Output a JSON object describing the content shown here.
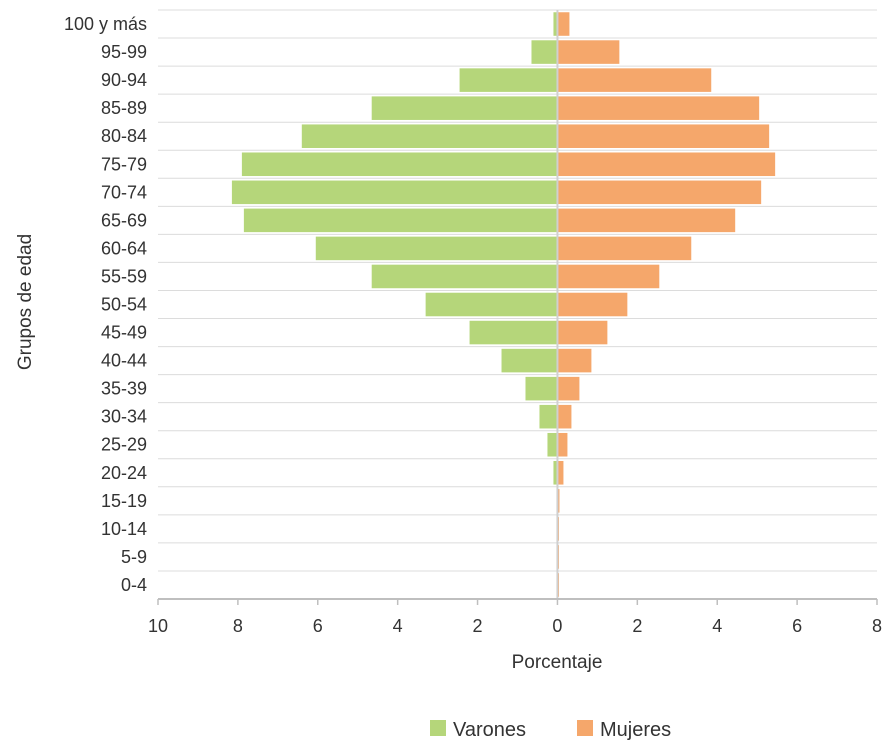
{
  "chart_data": {
    "type": "bar",
    "orientation": "horizontal",
    "variant": "population-pyramid",
    "title": "",
    "xlabel": "Porcentaje",
    "ylabel": "Grupos de edad",
    "xlim": [
      -10,
      8
    ],
    "x_ticks": [
      -10,
      -8,
      -6,
      -4,
      -2,
      0,
      2,
      4,
      6,
      8
    ],
    "x_tick_labels": [
      "10",
      "8",
      "6",
      "4",
      "2",
      "0",
      "2",
      "4",
      "6",
      "8"
    ],
    "grid": true,
    "legend_position": "bottom",
    "categories": [
      "100 y más",
      "95-99",
      "90-94",
      "85-89",
      "80-84",
      "75-79",
      "70-74",
      "65-69",
      "60-64",
      "55-59",
      "50-54",
      "45-49",
      "40-44",
      "35-39",
      "30-34",
      "25-29",
      "20-24",
      "15-19",
      "10-14",
      "5-9",
      "0-4"
    ],
    "series": [
      {
        "name": "Varones",
        "color": "#b5d67a",
        "side": "left",
        "values": [
          0.1,
          0.65,
          2.45,
          4.65,
          6.4,
          7.9,
          8.15,
          7.85,
          6.05,
          4.65,
          3.3,
          2.2,
          1.4,
          0.8,
          0.45,
          0.25,
          0.1,
          0.02,
          0.0,
          0.0,
          0.0
        ]
      },
      {
        "name": "Mujeres",
        "color": "#f5a76b",
        "side": "right",
        "values": [
          0.3,
          1.55,
          3.85,
          5.05,
          5.3,
          5.45,
          5.1,
          4.45,
          3.35,
          2.55,
          1.75,
          1.25,
          0.85,
          0.55,
          0.35,
          0.25,
          0.15,
          0.05,
          0.02,
          0.02,
          0.02
        ]
      }
    ]
  }
}
